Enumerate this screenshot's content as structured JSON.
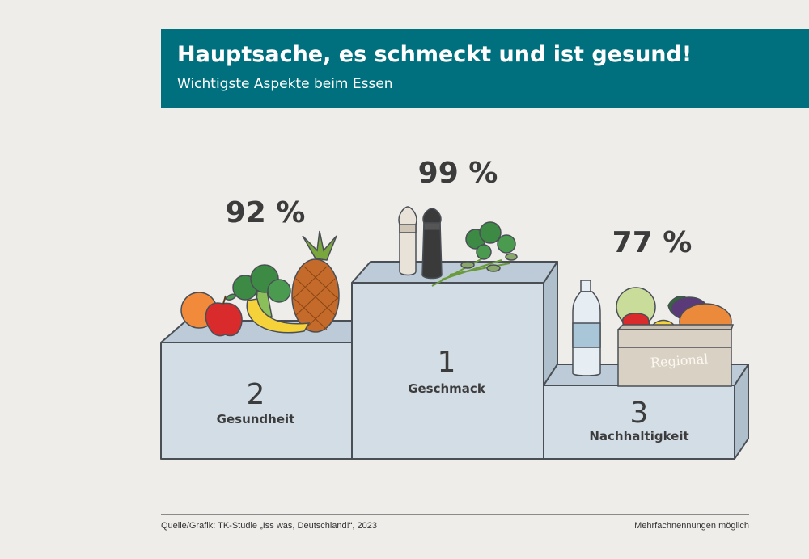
{
  "header": {
    "title": "Hauptsache, es schmeckt und ist gesund!",
    "subtitle": "Wichtigste Aspekte beim Essen"
  },
  "chart_data": {
    "type": "bar",
    "title": "Hauptsache, es schmeckt und ist gesund!",
    "subtitle": "Wichtigste Aspekte beim Essen",
    "categories": [
      "Gesundheit",
      "Geschmack",
      "Nachhaltigkeit"
    ],
    "values": [
      92,
      99,
      77
    ],
    "value_labels": [
      "92 %",
      "99 %",
      "77 %"
    ],
    "ranks": [
      "2",
      "1",
      "3"
    ],
    "unit": "%",
    "style": "podium",
    "crate_label": "Regional"
  },
  "footer": {
    "source": "Quelle/Grafik: TK-Studie „Iss was, Deutschland!“, 2023",
    "note": "Mehrfachnennungen möglich"
  },
  "colors": {
    "header_bg": "#00707e",
    "podium_front": "#d3dde6",
    "podium_top": "#bccbd7",
    "podium_side": "#afbfcc",
    "outline": "#4a4f55",
    "background": "#efedea"
  }
}
